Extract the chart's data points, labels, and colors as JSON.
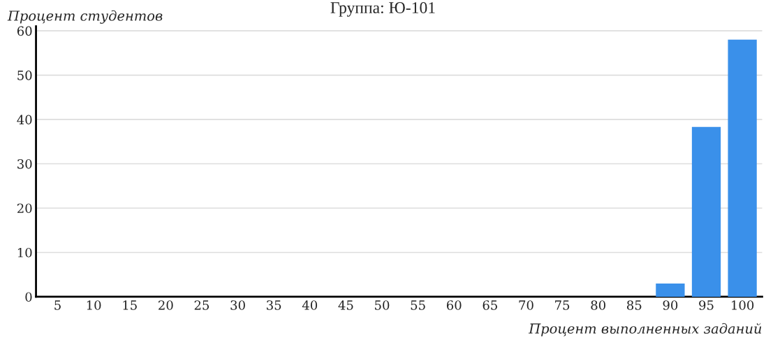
{
  "chart_data": {
    "type": "bar",
    "title": "Группа: Ю-101",
    "xlabel": "Процент выполненных заданий",
    "ylabel": "Процент студентов",
    "categories": [
      "5",
      "10",
      "15",
      "20",
      "25",
      "30",
      "35",
      "40",
      "45",
      "50",
      "55",
      "60",
      "65",
      "70",
      "75",
      "80",
      "85",
      "90",
      "95",
      "100"
    ],
    "values": [
      0,
      0,
      0,
      0,
      0,
      0,
      0,
      0,
      0,
      0,
      0,
      0,
      0,
      0,
      0,
      0,
      0,
      3,
      38.3,
      58
    ],
    "color": "#3a90ea",
    "ylim": [
      0,
      61
    ],
    "yticks": [
      0,
      10,
      20,
      30,
      40,
      50,
      60
    ],
    "grid": "y"
  }
}
